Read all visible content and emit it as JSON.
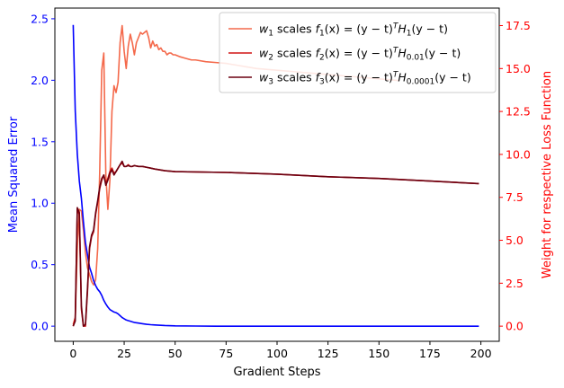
{
  "chart_data": {
    "type": "line",
    "xlabel": "Gradient Steps",
    "ylabel_left": "Mean Squared Error",
    "ylabel_right": "Weight for respective Loss Function",
    "xlim": [
      -9,
      209
    ],
    "ylim_left": [
      -0.1232,
      2.587
    ],
    "ylim_right": [
      -0.882,
      18.52
    ],
    "x_ticks": [
      0,
      25,
      50,
      75,
      100,
      125,
      150,
      175,
      200
    ],
    "y_left_ticks": [
      0.0,
      0.5,
      1.0,
      1.5,
      2.0,
      2.5
    ],
    "y_right_ticks": [
      0.0,
      2.5,
      5.0,
      7.5,
      10.0,
      12.5,
      15.0,
      17.5
    ],
    "grid": false,
    "legend_position": "top-right",
    "colors": {
      "left_axis": "#0000ff",
      "right_axis": "#ff0000"
    },
    "series": [
      {
        "name": "MSE",
        "axis": "left",
        "color": "#0000ff",
        "x": [
          0,
          1,
          2,
          3,
          4,
          5,
          6,
          7,
          8,
          9,
          10,
          11,
          12,
          13,
          14,
          15,
          16,
          17,
          18,
          19,
          20,
          21,
          22,
          23,
          24,
          25,
          26,
          27,
          28,
          29,
          30,
          32,
          34,
          36,
          38,
          40,
          45,
          50,
          60,
          70,
          80,
          100,
          150,
          199
        ],
        "values": [
          2.45,
          1.75,
          1.4,
          1.18,
          1.04,
          0.85,
          0.68,
          0.58,
          0.48,
          0.43,
          0.37,
          0.33,
          0.3,
          0.28,
          0.25,
          0.21,
          0.18,
          0.155,
          0.135,
          0.125,
          0.115,
          0.11,
          0.1,
          0.085,
          0.07,
          0.06,
          0.05,
          0.045,
          0.04,
          0.035,
          0.03,
          0.025,
          0.02,
          0.015,
          0.012,
          0.01,
          0.005,
          0.002,
          0.001,
          0.0,
          0.0,
          0.0,
          0.0,
          0.0
        ]
      },
      {
        "name": "$w_1$ scales $f_1(x) = (y-t)^T H_1 (y-t)$",
        "axis": "right",
        "color": "#f4694b",
        "x": [
          0,
          1,
          2,
          3,
          4,
          5,
          6,
          7,
          8,
          9,
          10,
          11,
          12,
          13,
          14,
          15,
          16,
          17,
          18,
          19,
          20,
          21,
          22,
          23,
          24,
          25,
          26,
          27,
          28,
          29,
          30,
          31,
          32,
          33,
          34,
          35,
          36,
          37,
          38,
          39,
          40,
          41,
          42,
          43,
          44,
          45,
          46,
          47,
          48,
          49,
          50,
          52,
          55,
          58,
          60,
          65,
          70,
          75,
          80,
          85,
          90,
          100,
          110,
          120,
          130,
          140,
          150,
          160
        ],
        "values": [
          0.1,
          0.5,
          4.5,
          6.8,
          6.7,
          5.6,
          4.3,
          3.4,
          3.0,
          2.6,
          2.4,
          2.7,
          4.5,
          9.0,
          14.9,
          15.9,
          8.8,
          6.8,
          8.5,
          12.5,
          14.0,
          13.6,
          14.2,
          16.5,
          17.5,
          16.0,
          15.0,
          16.3,
          17.0,
          16.5,
          15.8,
          16.5,
          16.8,
          17.1,
          17.0,
          17.1,
          17.2,
          16.8,
          16.2,
          16.6,
          16.3,
          16.4,
          16.1,
          16.2,
          16.0,
          16.0,
          15.8,
          15.9,
          15.9,
          15.8,
          15.8,
          15.7,
          15.6,
          15.5,
          15.5,
          15.4,
          15.35,
          15.3,
          15.2,
          15.1,
          15.0,
          14.9,
          14.8,
          14.7,
          14.6,
          14.5,
          14.4,
          14.3
        ]
      },
      {
        "name": "$w_2$ scales $f_2(x) = (y-t)^T H_{0.01} (y-t)$",
        "axis": "right",
        "color": "#d11414",
        "x": [
          0,
          1,
          2,
          3,
          4,
          5,
          6,
          7,
          8,
          9,
          10,
          11,
          12,
          13,
          14,
          15,
          16,
          17,
          18,
          19,
          20,
          21,
          22,
          23,
          24,
          25,
          26,
          27,
          28,
          29,
          30,
          32,
          34,
          36,
          38,
          40,
          45,
          50,
          75,
          100,
          125,
          150,
          175,
          199
        ],
        "values": [
          0.0,
          0.5,
          6.8,
          6.5,
          1.0,
          0.0,
          0.0,
          2.0,
          4.5,
          5.2,
          5.5,
          6.5,
          7.2,
          8.0,
          8.5,
          8.8,
          8.3,
          8.6,
          9.0,
          9.2,
          8.9,
          9.0,
          9.2,
          9.4,
          9.5,
          9.3,
          9.3,
          9.4,
          9.3,
          9.3,
          9.35,
          9.3,
          9.3,
          9.25,
          9.2,
          9.15,
          9.05,
          9.0,
          8.95,
          8.85,
          8.7,
          8.6,
          8.45,
          8.3
        ]
      },
      {
        "name": "$w_3$ scales $f_3(x) = (y-t)^T H_{0.0001} (y-t)$",
        "axis": "right",
        "color": "#6b0010",
        "x": [
          0,
          1,
          2,
          3,
          4,
          5,
          6,
          7,
          8,
          9,
          10,
          11,
          12,
          13,
          14,
          15,
          16,
          17,
          18,
          19,
          20,
          21,
          22,
          23,
          24,
          25,
          26,
          27,
          28,
          29,
          30,
          32,
          34,
          36,
          38,
          40,
          45,
          50,
          75,
          100,
          125,
          150,
          175,
          199
        ],
        "values": [
          0.0,
          0.3,
          6.9,
          6.6,
          1.2,
          0.0,
          0.1,
          2.2,
          4.6,
          5.3,
          5.6,
          6.6,
          7.3,
          8.1,
          8.6,
          8.8,
          8.2,
          8.5,
          8.9,
          9.1,
          8.8,
          9.0,
          9.2,
          9.4,
          9.6,
          9.3,
          9.3,
          9.35,
          9.3,
          9.3,
          9.35,
          9.3,
          9.3,
          9.25,
          9.2,
          9.15,
          9.05,
          9.0,
          8.95,
          8.85,
          8.7,
          8.6,
          8.45,
          8.3
        ]
      }
    ],
    "legend": [
      {
        "key": "w1",
        "color": "#f4694b",
        "w": "w",
        "w_sub": "1",
        "scales": "scales",
        "f": "f",
        "f_sub": "1",
        "expr_a": "(x) = (y − t)",
        "sup": "T",
        "H": "H",
        "H_sub": "1",
        "expr_b": "(y − t)"
      },
      {
        "key": "w2",
        "color": "#d11414",
        "w": "w",
        "w_sub": "2",
        "scales": "scales",
        "f": "f",
        "f_sub": "2",
        "expr_a": "(x) = (y − t)",
        "sup": "T",
        "H": "H",
        "H_sub": "0.01",
        "expr_b": "(y − t)"
      },
      {
        "key": "w3",
        "color": "#6b0010",
        "w": "w",
        "w_sub": "3",
        "scales": "scales",
        "f": "f",
        "f_sub": "3",
        "expr_a": "(x) = (y − t)",
        "sup": "T",
        "H": "H",
        "H_sub": "0.0001",
        "expr_b": "(y − t)"
      }
    ]
  }
}
